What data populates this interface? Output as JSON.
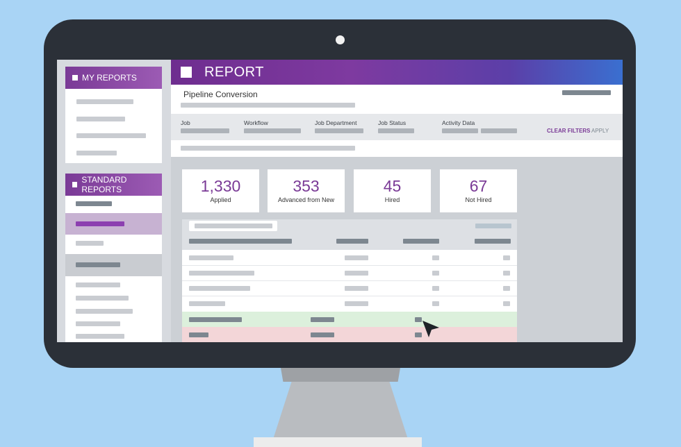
{
  "sidebar": {
    "my_reports": {
      "title": "MY REPORTS"
    },
    "standard_reports": {
      "title": "STANDARD REPORTS"
    }
  },
  "report": {
    "title": "REPORT",
    "subtitle": "Pipeline Conversion"
  },
  "filters": {
    "labels": [
      "Job",
      "Workflow",
      "Job Department",
      "Job Status",
      "Activity Data"
    ],
    "clear_label": "CLEAR FILTERS",
    "apply_label": "APPLY"
  },
  "stats": [
    {
      "value": "1,330",
      "label": "Applied"
    },
    {
      "value": "353",
      "label": "Advanced from New"
    },
    {
      "value": "45",
      "label": "Hired"
    },
    {
      "value": "67",
      "label": "Not Hired"
    }
  ],
  "colors": {
    "accent": "#7a3a96",
    "header_gradient_end": "#3a6fd0",
    "row_highlight_green": "#dcf0dc",
    "row_highlight_red": "#f3d6d8"
  },
  "icons": {
    "checkbox": "square-icon",
    "cursor": "mouse-pointer-icon"
  }
}
